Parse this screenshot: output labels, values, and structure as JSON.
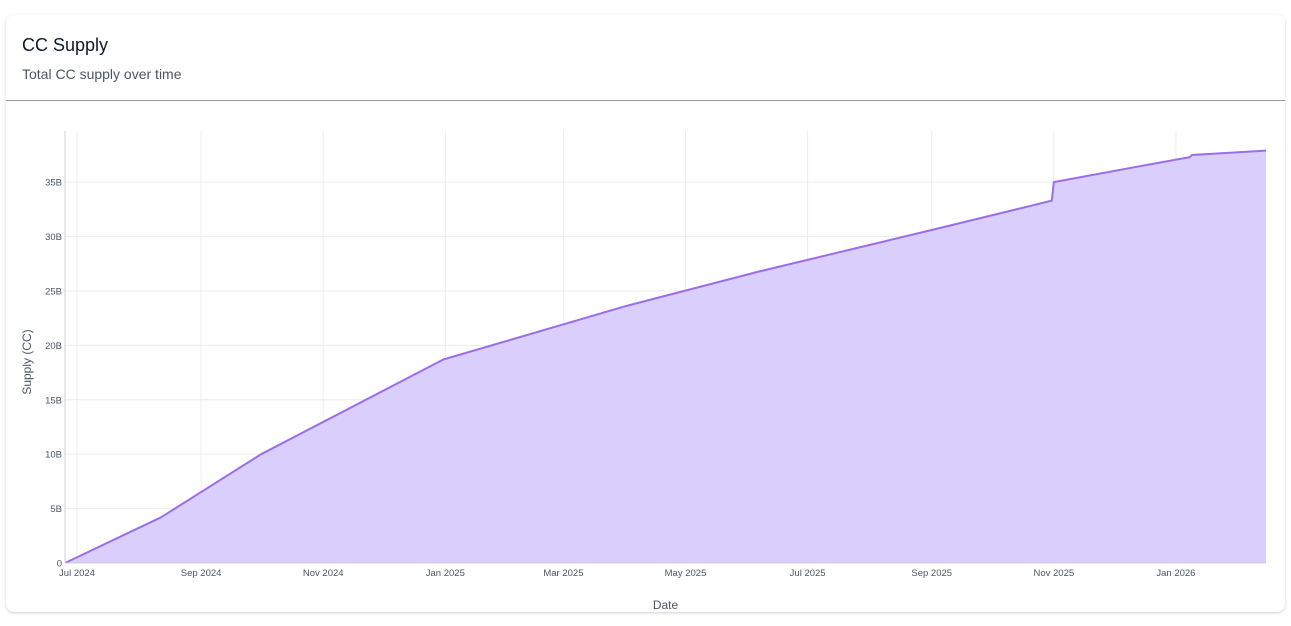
{
  "card": {
    "title": "CC Supply",
    "subtitle": "Total CC supply over time"
  },
  "colors": {
    "line": "#9b6ee8",
    "fill": "#dacffc",
    "grid": "#ececec",
    "axis": "#d0d0d0",
    "text": "#4b5563"
  },
  "chart_data": {
    "type": "area",
    "xlabel": "Date",
    "ylabel": "Supply (CC)",
    "grid": true,
    "xlim": [
      "2024-06-25",
      "2026-02-15"
    ],
    "ylim": [
      0,
      39700000000
    ],
    "x_ticks": [
      {
        "date": "2024-07-01",
        "label": "Jul 2024"
      },
      {
        "date": "2024-09-01",
        "label": "Sep 2024"
      },
      {
        "date": "2024-11-01",
        "label": "Nov 2024"
      },
      {
        "date": "2025-01-01",
        "label": "Jan 2025"
      },
      {
        "date": "2025-03-01",
        "label": "Mar 2025"
      },
      {
        "date": "2025-05-01",
        "label": "May 2025"
      },
      {
        "date": "2025-07-01",
        "label": "Jul 2025"
      },
      {
        "date": "2025-09-01",
        "label": "Sep 2025"
      },
      {
        "date": "2025-11-01",
        "label": "Nov 2025"
      },
      {
        "date": "2026-01-01",
        "label": "Jan 2026"
      }
    ],
    "y_ticks": [
      {
        "value": 0,
        "label": "0"
      },
      {
        "value": 5000000000,
        "label": "5B"
      },
      {
        "value": 10000000000,
        "label": "10B"
      },
      {
        "value": 15000000000,
        "label": "15B"
      },
      {
        "value": 20000000000,
        "label": "20B"
      },
      {
        "value": 25000000000,
        "label": "25B"
      },
      {
        "value": 30000000000,
        "label": "30B"
      },
      {
        "value": 35000000000,
        "label": "35B"
      }
    ],
    "x": [
      "2024-06-25",
      "2024-08-12",
      "2024-10-01",
      "2024-12-31",
      "2025-04-01",
      "2025-06-07",
      "2025-09-01",
      "2025-10-20",
      "2025-10-31",
      "2025-11-01",
      "2025-12-15",
      "2026-01-08",
      "2026-01-09",
      "2026-02-15"
    ],
    "values": [
      0,
      4200000000,
      10000000000,
      18700000000,
      23600000000,
      26800000000,
      30600000000,
      32800000000,
      33300000000,
      35000000000,
      36500000000,
      37300000000,
      37500000000,
      37900000000
    ]
  }
}
